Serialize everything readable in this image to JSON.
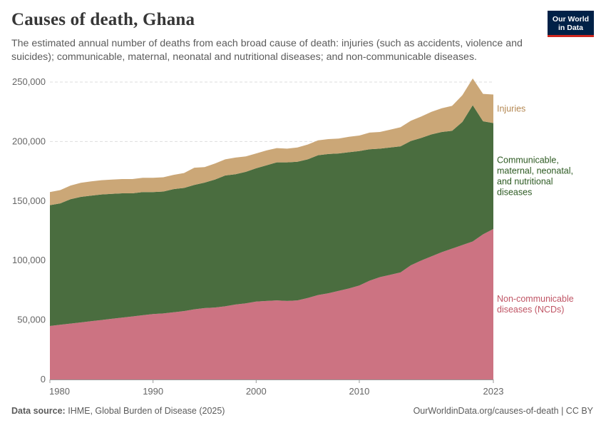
{
  "header": {
    "title": "Causes of death, Ghana",
    "subtitle": "The estimated annual number of deaths from each broad cause of death: injuries (such as accidents, violence and suicides); communicable, maternal, neonatal and nutritional diseases; and non-communicable diseases.",
    "logo_line1": "Our World",
    "logo_line2": "in Data"
  },
  "footer": {
    "source_label": "Data source:",
    "source_text": "IHME, Global Burden of Disease (2025)",
    "url": "OurWorldinData.org/causes-of-death | CC BY"
  },
  "colors": {
    "ncd": "#cc7382",
    "communicable": "#4a6d3f",
    "injuries": "#cba777",
    "ncd_label": "#c05565",
    "communicable_label": "#2d5a22",
    "injuries_label": "#b58954"
  },
  "chart_data": {
    "type": "area",
    "stacked": true,
    "title": "Causes of death, Ghana",
    "x": [
      1980,
      1981,
      1982,
      1983,
      1984,
      1985,
      1986,
      1987,
      1988,
      1989,
      1990,
      1991,
      1992,
      1993,
      1994,
      1995,
      1996,
      1997,
      1998,
      1999,
      2000,
      2001,
      2002,
      2003,
      2004,
      2005,
      2006,
      2007,
      2008,
      2009,
      2010,
      2011,
      2012,
      2013,
      2014,
      2015,
      2016,
      2017,
      2018,
      2019,
      2020,
      2021,
      2022,
      2023
    ],
    "x_ticks": [
      1980,
      1990,
      2000,
      2010,
      2023
    ],
    "x_tick_labels": [
      "1980",
      "1990",
      "2000",
      "2010",
      "2023"
    ],
    "ylim": [
      0,
      250000
    ],
    "y_ticks": [
      0,
      50000,
      100000,
      150000,
      200000,
      250000
    ],
    "y_tick_labels": [
      "0",
      "50,000",
      "100,000",
      "150,000",
      "200,000",
      "250,000"
    ],
    "grid": true,
    "series": [
      {
        "name": "Non-communicable diseases (NCDs)",
        "label_lines": [
          "Non-communicable",
          "diseases (NCDs)"
        ],
        "values": [
          45000,
          46000,
          47000,
          48000,
          49000,
          50000,
          51000,
          52000,
          53000,
          54000,
          55000,
          55500,
          56500,
          57500,
          59000,
          60000,
          60500,
          61500,
          63000,
          64000,
          65500,
          66000,
          66500,
          66000,
          66500,
          68500,
          71000,
          72500,
          74500,
          76500,
          79000,
          83000,
          86000,
          88000,
          90000,
          96000,
          100000,
          103500,
          107000,
          110000,
          113000,
          116000,
          122000,
          126500
        ]
      },
      {
        "name": "Communicable, maternal, neonatal, and nutritional diseases",
        "label_lines": [
          "Communicable,",
          "maternal, neonatal,",
          "and nutritional",
          "diseases"
        ],
        "values": [
          101500,
          102000,
          104500,
          105500,
          105500,
          105500,
          105000,
          104500,
          103500,
          103500,
          102500,
          102500,
          103500,
          103500,
          104500,
          105500,
          107500,
          110000,
          109500,
          110500,
          112000,
          114000,
          116000,
          116500,
          116500,
          116500,
          117500,
          117000,
          115500,
          114500,
          113000,
          110500,
          108000,
          107000,
          106000,
          104500,
          103000,
          102500,
          101000,
          99000,
          103500,
          114500,
          95000,
          89000
        ]
      },
      {
        "name": "Injuries",
        "label_lines": [
          "Injuries"
        ],
        "values": [
          11000,
          11200,
          11500,
          11800,
          12000,
          12000,
          12000,
          12000,
          12000,
          12000,
          12000,
          12000,
          12000,
          12500,
          14500,
          13000,
          13500,
          13500,
          14000,
          13000,
          12500,
          12500,
          12000,
          11500,
          12000,
          12500,
          12500,
          12500,
          12500,
          13000,
          13000,
          14000,
          14000,
          15000,
          16000,
          17000,
          18000,
          19000,
          20000,
          21000,
          22500,
          22500,
          23000,
          24000
        ]
      }
    ]
  }
}
